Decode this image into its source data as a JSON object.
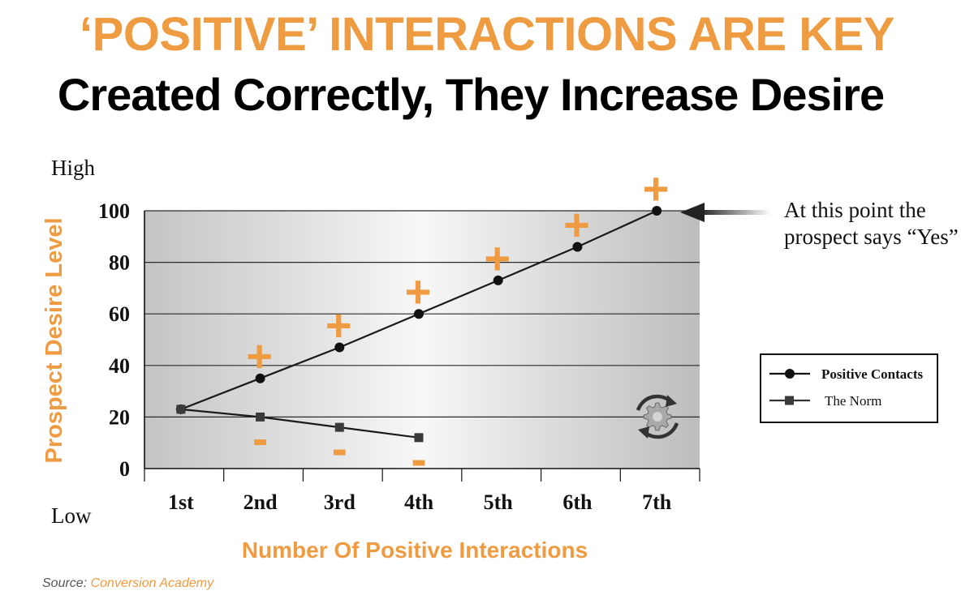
{
  "title": "‘POSITIVE’ INTERACTIONS ARE KEY",
  "subtitle": "Created Correctly, They Increase Desire",
  "source": {
    "label": "Source:",
    "name": "Conversion Academy"
  },
  "colors": {
    "accent": "#ee9b42",
    "line": "#1a1a1a",
    "marker": "#3a3a3a",
    "grid": "#2a2a2a"
  },
  "annotation": {
    "line1": "At this point the",
    "line2": "prospect says “Yes”"
  },
  "chart_data": {
    "type": "line",
    "categories": [
      "1st",
      "2nd",
      "3rd",
      "4th",
      "5th",
      "6th",
      "7th"
    ],
    "xlabel": "Number Of Positive Interactions",
    "ylabel": "Prospect  Desire  Level",
    "y_high_label": "High",
    "y_low_label": "Low",
    "ylim": [
      0,
      100
    ],
    "yticks": [
      0,
      20,
      40,
      60,
      80,
      100
    ],
    "grid": true,
    "legend": {
      "placement": "right"
    },
    "series": [
      {
        "name": "Positive Contacts",
        "marker": "circle",
        "values": [
          23,
          35,
          47,
          60,
          73,
          86,
          100
        ]
      },
      {
        "name": "The Norm",
        "marker": "square",
        "values": [
          23,
          20,
          16,
          12,
          null,
          null,
          null
        ]
      }
    ],
    "plus_marks": {
      "symbol": "+",
      "categories": [
        "2nd",
        "3rd",
        "4th",
        "5th",
        "6th",
        "7th"
      ]
    },
    "minus_marks": {
      "symbol": "-",
      "categories": [
        "2nd",
        "3rd",
        "4th"
      ]
    }
  }
}
